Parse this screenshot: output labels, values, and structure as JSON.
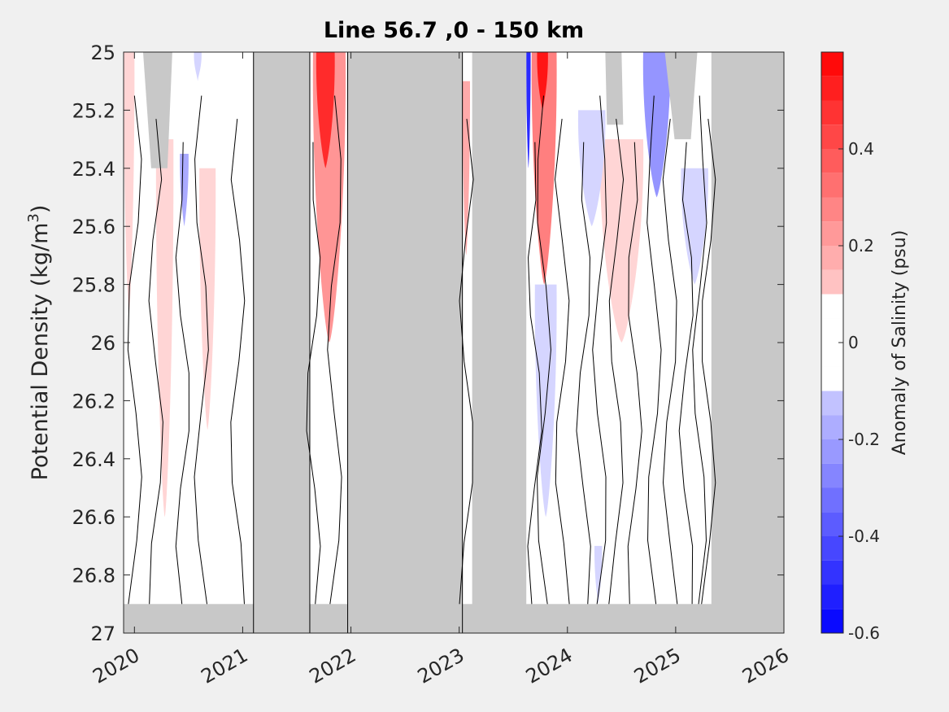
{
  "chart_data": {
    "type": "heatmap",
    "title": "Line 56.7 ,0 - 150 km",
    "ylabel": "Potential Density (kg/m",
    "ylabel_sup": "3",
    "ylabel_end": ")",
    "colorbar_label": "Anomaly of Salinity (psu)",
    "xlim": [
      2019.9,
      2026
    ],
    "ylim": [
      25,
      27
    ],
    "y_reversed": true,
    "x_ticks": [
      "2020",
      "2021",
      "2022",
      "2023",
      "2024",
      "2025",
      "2026"
    ],
    "x_tick_values": [
      2020,
      2021,
      2022,
      2023,
      2024,
      2025,
      2026
    ],
    "y_ticks": [
      "25",
      "25.2",
      "25.4",
      "25.6",
      "25.8",
      "26",
      "26.2",
      "26.4",
      "26.6",
      "26.8",
      "27"
    ],
    "y_tick_values": [
      25,
      25.2,
      25.4,
      25.6,
      25.8,
      26,
      26.2,
      26.4,
      26.6,
      26.8,
      27
    ],
    "colorbar_range": [
      -0.6,
      0.6
    ],
    "colorbar_step": 0.05,
    "colorbar_ticks": [
      "0.4",
      "0.2",
      "0",
      "-0.2",
      "-0.4",
      "-0.6"
    ],
    "colorbar_tick_values": [
      0.4,
      0.2,
      0,
      -0.2,
      -0.4,
      -0.6
    ],
    "colors": {
      "positive": "#ff0000",
      "negative": "#0000ff",
      "zero": "#ffffff",
      "no_data": "#c8c8c8",
      "background": "#f0f0f0"
    },
    "no_data_periods": [
      [
        2021.1,
        2021.62
      ],
      [
        2021.97,
        2023.03
      ],
      [
        2023.12,
        2023.62
      ],
      [
        2025.33,
        2026
      ]
    ],
    "anomaly_features": [
      {
        "x_start": 2019.9,
        "x_end": 2020.0,
        "y_top": 25.0,
        "y_bottom": 25.9,
        "value": 0.1
      },
      {
        "x_start": 2020.2,
        "x_end": 2020.36,
        "y_top": 25.3,
        "y_bottom": 26.6,
        "value": 0.15
      },
      {
        "x_start": 2020.42,
        "x_end": 2020.5,
        "y_top": 25.35,
        "y_bottom": 25.6,
        "value": -0.2
      },
      {
        "x_start": 2020.6,
        "x_end": 2020.75,
        "y_top": 25.4,
        "y_bottom": 26.3,
        "value": 0.1
      },
      {
        "x_start": 2020.55,
        "x_end": 2020.62,
        "y_top": 25.0,
        "y_bottom": 25.1,
        "value": -0.1
      },
      {
        "x_start": 2021.65,
        "x_end": 2021.95,
        "y_top": 25.0,
        "y_bottom": 26.0,
        "value": 0.3
      },
      {
        "x_start": 2021.68,
        "x_end": 2021.85,
        "y_top": 25.0,
        "y_bottom": 25.4,
        "value": 0.5
      },
      {
        "x_start": 2023.03,
        "x_end": 2023.1,
        "y_top": 25.1,
        "y_bottom": 25.7,
        "value": 0.2
      },
      {
        "x_start": 2023.62,
        "x_end": 2023.66,
        "y_top": 25.0,
        "y_bottom": 25.4,
        "value": -0.5
      },
      {
        "x_start": 2023.67,
        "x_end": 2023.9,
        "y_top": 25.0,
        "y_bottom": 25.8,
        "value": 0.35
      },
      {
        "x_start": 2023.72,
        "x_end": 2023.82,
        "y_top": 25.0,
        "y_bottom": 25.2,
        "value": 0.55
      },
      {
        "x_start": 2023.7,
        "x_end": 2023.9,
        "y_top": 25.8,
        "y_bottom": 26.6,
        "value": -0.15
      },
      {
        "x_start": 2024.3,
        "x_end": 2024.7,
        "y_top": 25.3,
        "y_bottom": 26.0,
        "value": 0.15
      },
      {
        "x_start": 2024.7,
        "x_end": 2024.95,
        "y_top": 25.0,
        "y_bottom": 25.5,
        "value": -0.25
      },
      {
        "x_start": 2024.1,
        "x_end": 2024.35,
        "y_top": 25.2,
        "y_bottom": 25.6,
        "value": -0.1
      },
      {
        "x_start": 2025.05,
        "x_end": 2025.3,
        "y_top": 25.4,
        "y_bottom": 25.8,
        "value": -0.1
      },
      {
        "x_start": 2024.25,
        "x_end": 2024.32,
        "y_top": 26.7,
        "y_bottom": 26.9,
        "value": -0.1
      }
    ]
  }
}
